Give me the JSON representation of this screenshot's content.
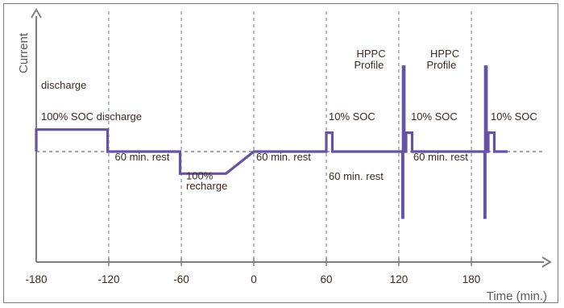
{
  "chart_data": {
    "type": "line",
    "title": "",
    "xlabel": "Time (min.)",
    "ylabel": "Current",
    "xlim": [
      -180,
      210
    ],
    "ylim": [
      -1.3,
      1.1
    ],
    "x_ticks": [
      "-180",
      "-120",
      "-60",
      "0",
      "60",
      "120",
      "180"
    ],
    "x_tick_values": [
      -180,
      -120,
      -60,
      0,
      60,
      120,
      180
    ],
    "grid": "vertical dashed lines at each x tick",
    "baseline": 0,
    "colors": {
      "series": "#6553a6",
      "axis": "#7f7f7f",
      "grid": "#8c8c8c",
      "text": "#3a2a22"
    },
    "series": [
      {
        "x": [
          -180,
          -180,
          -121,
          -121,
          -61,
          -61,
          -23,
          0,
          60,
          60,
          65,
          65,
          123,
          123,
          123.5,
          123.5,
          124.5,
          124.5,
          126,
          126,
          131,
          131,
          191,
          191,
          191.5,
          191.5,
          192.5,
          192.5,
          194,
          194,
          199,
          199,
          210
        ],
        "y": [
          0,
          0.35,
          0.35,
          0,
          0,
          -0.35,
          -0.35,
          0,
          0,
          0.3,
          0.3,
          0,
          0,
          -1.05,
          -1.05,
          1.35,
          1.35,
          0,
          0,
          0.3,
          0.3,
          0,
          0,
          -1.05,
          -1.05,
          1.35,
          1.35,
          0,
          0,
          0.3,
          0.3,
          0,
          0
        ]
      }
    ],
    "annotations": [
      {
        "text": "discharge",
        "x": -176,
        "y": 1.0
      },
      {
        "text": "100% SOC discharge",
        "x": -176,
        "y": 0.5
      },
      {
        "text": "60 min. rest",
        "x": -115,
        "y": -0.14
      },
      {
        "text": "100%",
        "x": -56,
        "y": -0.44
      },
      {
        "text": "recharge",
        "x": -56,
        "y": -0.6
      },
      {
        "text": "60 min. rest",
        "x": 2,
        "y": -0.14
      },
      {
        "text": "10% SOC",
        "x": 62,
        "y": 0.5
      },
      {
        "text": "60 min. rest",
        "x": 62,
        "y": -0.45
      },
      {
        "text": "HPPC",
        "x": 85,
        "y": 1.5
      },
      {
        "text": "Profile",
        "x": 83,
        "y": 1.32
      },
      {
        "text": "10% SOC",
        "x": 130,
        "y": 0.5
      },
      {
        "text": "60 min. rest",
        "x": 132,
        "y": -0.14
      },
      {
        "text": "HPPC",
        "x": 146,
        "y": 1.5
      },
      {
        "text": "Profile",
        "x": 143,
        "y": 1.32
      },
      {
        "text": "10% SOC",
        "x": 196,
        "y": 0.5
      }
    ]
  }
}
